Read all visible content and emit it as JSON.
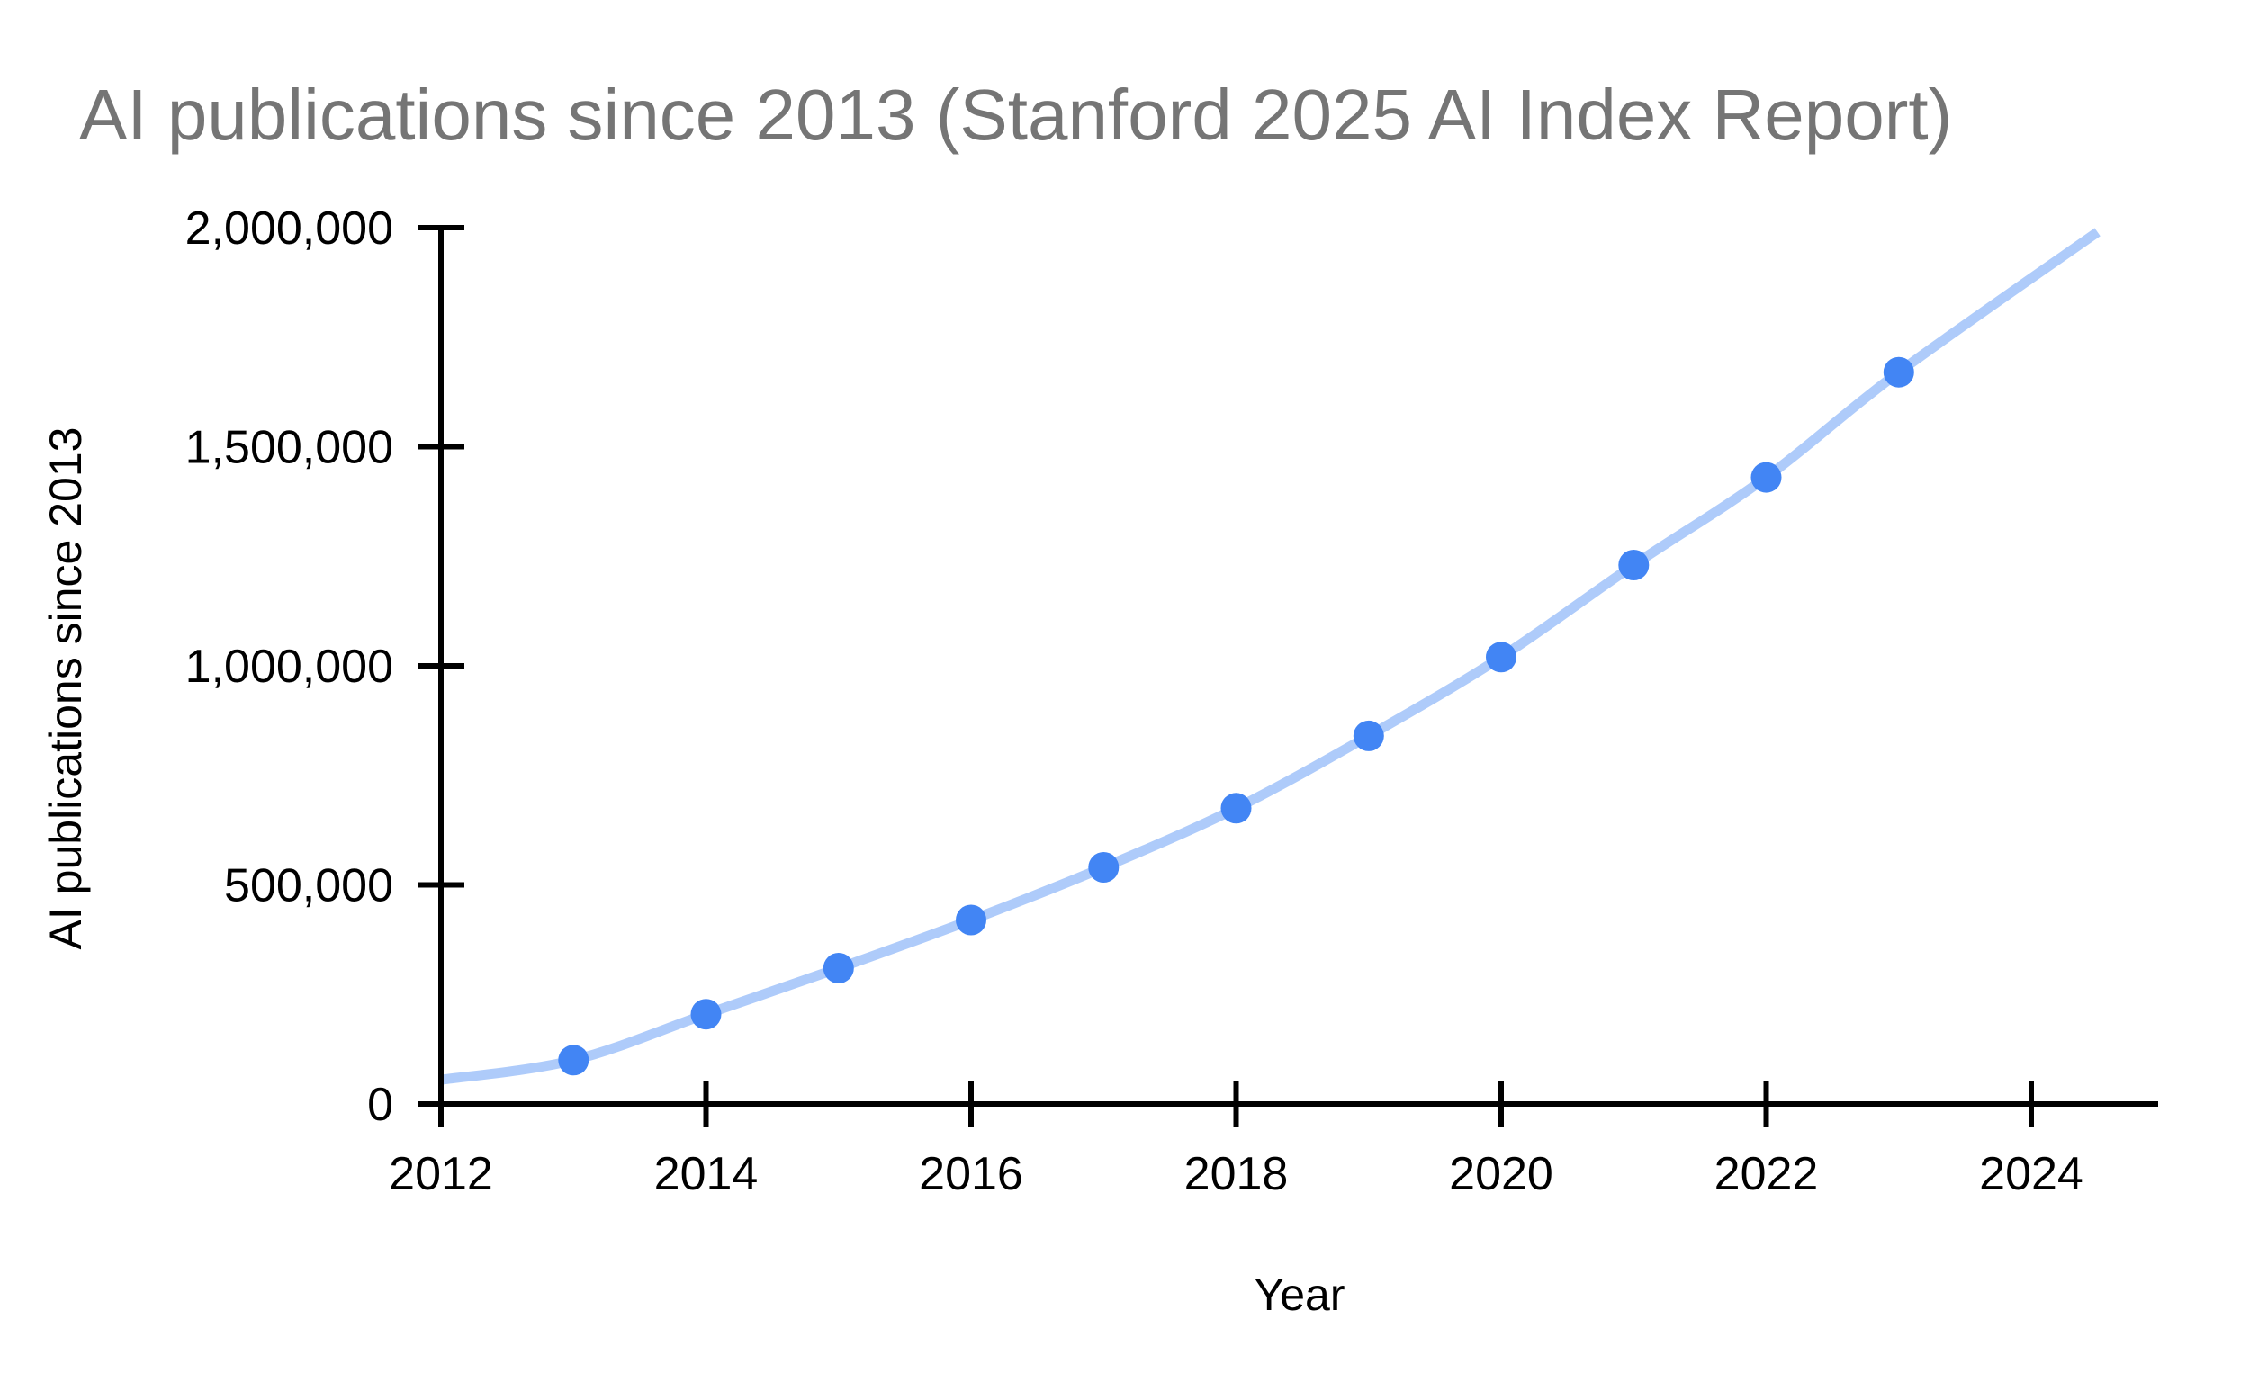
{
  "page": {
    "background_color": "#ffffff"
  },
  "chart_data": {
    "type": "scatter",
    "title": "AI publications since 2013 (Stanford 2025 AI Index Report)",
    "xlabel": "Year",
    "ylabel": "AI publications since 2013",
    "legend": "none",
    "grid": false,
    "xlim": [
      2012,
      2025
    ],
    "ylim": [
      0,
      2000000
    ],
    "x": [
      2013,
      2014,
      2015,
      2016,
      2017,
      2018,
      2019,
      2020,
      2021,
      2022,
      2023
    ],
    "series": [
      {
        "name": "AI publications since 2013",
        "values": [
          100000,
          205000,
          310000,
          420000,
          540000,
          675000,
          840000,
          1020000,
          1230000,
          1430000,
          1670000
        ]
      }
    ],
    "trendline": {
      "style": "smooth curve through points",
      "start": {
        "x": 2012,
        "y": 55000
      },
      "end": {
        "x": 2024.5,
        "y": 1990000
      }
    },
    "x_ticks": [
      {
        "value": 2012,
        "label": "2012"
      },
      {
        "value": 2014,
        "label": "2014"
      },
      {
        "value": 2016,
        "label": "2016"
      },
      {
        "value": 2018,
        "label": "2018"
      },
      {
        "value": 2020,
        "label": "2020"
      },
      {
        "value": 2022,
        "label": "2022"
      },
      {
        "value": 2024,
        "label": "2024"
      }
    ],
    "y_ticks": [
      {
        "value": 0,
        "label": "0"
      },
      {
        "value": 500000,
        "label": "500,000"
      },
      {
        "value": 1000000,
        "label": "1,000,000"
      },
      {
        "value": 1500000,
        "label": "1,500,000"
      },
      {
        "value": 2000000,
        "label": "2,000,000"
      }
    ],
    "colors": {
      "point": "#4285f4",
      "trendline": "#aecbfa",
      "axis": "#000000",
      "tick_label": "#000000",
      "axis_title": "#000000",
      "chart_title": "#757575",
      "background": "#ffffff"
    }
  }
}
